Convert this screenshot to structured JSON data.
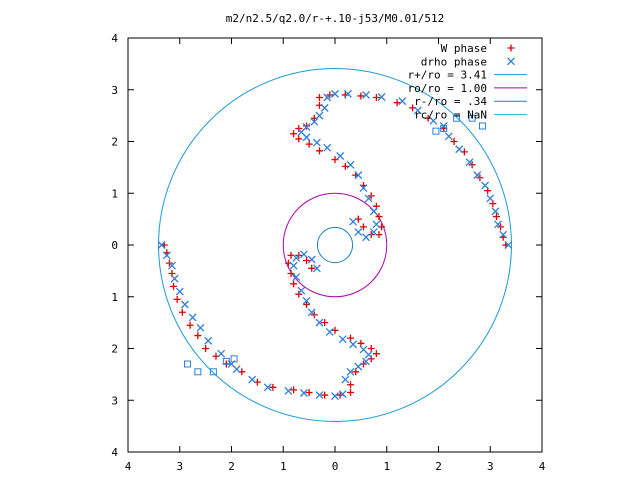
{
  "chart_data": {
    "type": "scatter",
    "title": "m2/n2.5/q2.0/r-+.10-j53/M0.01/512",
    "xlim": [
      -4,
      4
    ],
    "ylim": [
      -4,
      4
    ],
    "grid": false,
    "legend_position": "top-right",
    "x_ticks": [
      {
        "v": -4,
        "label": "4"
      },
      {
        "v": -3,
        "label": "3"
      },
      {
        "v": -2,
        "label": "2"
      },
      {
        "v": -1,
        "label": "1"
      },
      {
        "v": 0,
        "label": "0"
      },
      {
        "v": 1,
        "label": "1"
      },
      {
        "v": 2,
        "label": "2"
      },
      {
        "v": 3,
        "label": "3"
      },
      {
        "v": 4,
        "label": "4"
      }
    ],
    "y_ticks": [
      {
        "v": 4,
        "label": "4"
      },
      {
        "v": 3,
        "label": "3"
      },
      {
        "v": 2,
        "label": "2"
      },
      {
        "v": 1,
        "label": "1"
      },
      {
        "v": 0,
        "label": "0"
      },
      {
        "v": -1,
        "label": "1"
      },
      {
        "v": -2,
        "label": "2"
      },
      {
        "v": -3,
        "label": "3"
      },
      {
        "v": -4,
        "label": "4"
      }
    ],
    "circles": [
      {
        "name": "r+/ro = 3.41",
        "radius": 3.41,
        "color": "#1a9bd6"
      },
      {
        "name": "ro/ro = 1.00",
        "radius": 1.0,
        "color": "#b000b0"
      },
      {
        "name": "r-/ro = .34",
        "radius": 0.34,
        "color": "#1a80c0"
      },
      {
        "name": "rc/ro = NaN",
        "radius": null,
        "color": "#20c8c8"
      }
    ],
    "series": [
      {
        "name": "W phase",
        "marker": "plus",
        "color": "#e00000",
        "points": [
          [
            -0.3,
            2.7
          ],
          [
            -0.4,
            2.45
          ],
          [
            -0.55,
            2.3
          ],
          [
            -0.7,
            2.25
          ],
          [
            -0.8,
            2.15
          ],
          [
            -0.7,
            2.05
          ],
          [
            -0.5,
            1.95
          ],
          [
            -0.3,
            1.82
          ],
          [
            0.0,
            1.65
          ],
          [
            0.2,
            1.52
          ],
          [
            0.4,
            1.35
          ],
          [
            0.55,
            1.15
          ],
          [
            0.7,
            0.95
          ],
          [
            0.8,
            0.75
          ],
          [
            0.85,
            0.55
          ],
          [
            0.9,
            0.35
          ],
          [
            0.85,
            0.2
          ],
          [
            0.7,
            0.2
          ],
          [
            0.55,
            0.35
          ],
          [
            0.45,
            0.5
          ],
          [
            -0.3,
            2.85
          ],
          [
            -0.1,
            2.9
          ],
          [
            0.2,
            2.9
          ],
          [
            0.5,
            2.88
          ],
          [
            0.8,
            2.85
          ],
          [
            1.2,
            2.75
          ],
          [
            1.5,
            2.65
          ],
          [
            1.8,
            2.45
          ],
          [
            2.1,
            2.25
          ],
          [
            2.3,
            2.0
          ],
          [
            2.5,
            1.8
          ],
          [
            2.65,
            1.55
          ],
          [
            2.8,
            1.3
          ],
          [
            2.95,
            1.05
          ],
          [
            3.05,
            0.8
          ],
          [
            3.12,
            0.55
          ],
          [
            3.2,
            0.35
          ],
          [
            3.25,
            0.15
          ],
          [
            3.3,
            0.0
          ],
          [
            0.3,
            -2.7
          ],
          [
            0.4,
            -2.45
          ],
          [
            0.55,
            -2.3
          ],
          [
            0.7,
            -2.2
          ],
          [
            0.8,
            -2.1
          ],
          [
            0.7,
            -2.0
          ],
          [
            0.5,
            -1.9
          ],
          [
            0.3,
            -1.8
          ],
          [
            0.0,
            -1.65
          ],
          [
            -0.2,
            -1.5
          ],
          [
            -0.4,
            -1.35
          ],
          [
            -0.55,
            -1.15
          ],
          [
            -0.7,
            -0.95
          ],
          [
            -0.8,
            -0.75
          ],
          [
            -0.85,
            -0.55
          ],
          [
            -0.9,
            -0.35
          ],
          [
            -0.85,
            -0.2
          ],
          [
            -0.7,
            -0.2
          ],
          [
            -0.55,
            -0.3
          ],
          [
            -0.45,
            -0.45
          ],
          [
            0.3,
            -2.85
          ],
          [
            0.1,
            -2.9
          ],
          [
            -0.2,
            -2.9
          ],
          [
            -0.5,
            -2.85
          ],
          [
            -0.8,
            -2.8
          ],
          [
            -1.2,
            -2.75
          ],
          [
            -1.5,
            -2.65
          ],
          [
            -1.8,
            -2.45
          ],
          [
            -2.1,
            -2.3
          ],
          [
            -2.3,
            -2.15
          ],
          [
            -2.5,
            -2.0
          ],
          [
            -2.65,
            -1.75
          ],
          [
            -2.8,
            -1.55
          ],
          [
            -2.95,
            -1.3
          ],
          [
            -3.05,
            -1.05
          ],
          [
            -3.12,
            -0.8
          ],
          [
            -3.15,
            -0.55
          ],
          [
            -3.2,
            -0.35
          ],
          [
            -3.25,
            -0.15
          ],
          [
            -3.3,
            0.0
          ]
        ]
      },
      {
        "name": "drho phase",
        "marker": "x",
        "color": "#2f7fd8",
        "points": [
          [
            -0.2,
            2.65
          ],
          [
            -0.3,
            2.5
          ],
          [
            -0.4,
            2.38
          ],
          [
            -0.55,
            2.28
          ],
          [
            -0.65,
            2.18
          ],
          [
            -0.55,
            2.08
          ],
          [
            -0.35,
            1.98
          ],
          [
            -0.15,
            1.88
          ],
          [
            0.1,
            1.72
          ],
          [
            0.3,
            1.55
          ],
          [
            0.45,
            1.35
          ],
          [
            0.55,
            1.1
          ],
          [
            0.65,
            0.9
          ],
          [
            0.75,
            0.65
          ],
          [
            0.8,
            0.4
          ],
          [
            0.75,
            0.25
          ],
          [
            0.6,
            0.15
          ],
          [
            0.45,
            0.25
          ],
          [
            0.35,
            0.45
          ],
          [
            -0.15,
            2.85
          ],
          [
            0.0,
            2.92
          ],
          [
            0.25,
            2.92
          ],
          [
            0.6,
            2.9
          ],
          [
            0.9,
            2.86
          ],
          [
            1.3,
            2.78
          ],
          [
            1.6,
            2.6
          ],
          [
            1.9,
            2.4
          ],
          [
            2.1,
            2.3
          ],
          [
            2.2,
            2.1
          ],
          [
            2.4,
            1.85
          ],
          [
            2.6,
            1.6
          ],
          [
            2.75,
            1.35
          ],
          [
            2.9,
            1.15
          ],
          [
            3.0,
            0.9
          ],
          [
            3.1,
            0.65
          ],
          [
            3.15,
            0.4
          ],
          [
            3.25,
            0.2
          ],
          [
            3.35,
            0.0
          ],
          [
            0.2,
            -2.6
          ],
          [
            0.3,
            -2.45
          ],
          [
            0.45,
            -2.35
          ],
          [
            0.6,
            -2.25
          ],
          [
            0.65,
            -2.12
          ],
          [
            0.55,
            -2.02
          ],
          [
            0.35,
            -1.92
          ],
          [
            0.15,
            -1.82
          ],
          [
            -0.1,
            -1.68
          ],
          [
            -0.3,
            -1.5
          ],
          [
            -0.45,
            -1.3
          ],
          [
            -0.55,
            -1.08
          ],
          [
            -0.65,
            -0.88
          ],
          [
            -0.75,
            -0.62
          ],
          [
            -0.8,
            -0.4
          ],
          [
            -0.75,
            -0.25
          ],
          [
            -0.6,
            -0.18
          ],
          [
            -0.45,
            -0.28
          ],
          [
            -0.35,
            -0.45
          ],
          [
            0.15,
            -2.88
          ],
          [
            0.0,
            -2.92
          ],
          [
            -0.3,
            -2.9
          ],
          [
            -0.6,
            -2.86
          ],
          [
            -0.9,
            -2.82
          ],
          [
            -1.3,
            -2.75
          ],
          [
            -1.6,
            -2.6
          ],
          [
            -1.9,
            -2.4
          ],
          [
            -2.0,
            -2.3
          ],
          [
            -2.2,
            -2.1
          ],
          [
            -2.45,
            -1.85
          ],
          [
            -2.6,
            -1.6
          ],
          [
            -2.75,
            -1.4
          ],
          [
            -2.9,
            -1.15
          ],
          [
            -3.0,
            -0.9
          ],
          [
            -3.1,
            -0.65
          ],
          [
            -3.15,
            -0.4
          ],
          [
            -3.25,
            -0.2
          ],
          [
            -3.35,
            0.0
          ]
        ]
      },
      {
        "name": "",
        "marker": "square",
        "color": "#2f7fd8",
        "points": [
          [
            2.85,
            2.3
          ],
          [
            2.65,
            2.45
          ],
          [
            2.35,
            2.45
          ],
          [
            2.1,
            2.25
          ],
          [
            1.95,
            2.2
          ],
          [
            -2.85,
            -2.3
          ],
          [
            -2.65,
            -2.45
          ],
          [
            -2.35,
            -2.45
          ],
          [
            -2.1,
            -2.25
          ],
          [
            -1.95,
            -2.2
          ]
        ]
      }
    ]
  }
}
